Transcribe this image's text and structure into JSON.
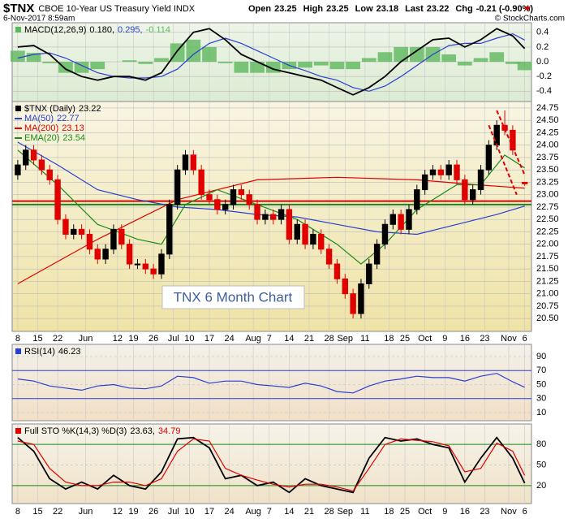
{
  "header": {
    "symbol": "$TNX",
    "name": "CBOE 10-Year US Treasury Yield INDX",
    "date": "6-Nov-2017 8:59am",
    "quote": [
      {
        "label": "Open",
        "value": "23.25"
      },
      {
        "label": "High",
        "value": "23.25"
      },
      {
        "label": "Low",
        "value": "23.18"
      },
      {
        "label": "Last",
        "value": "23.22"
      },
      {
        "label": "Chg",
        "value": "-0.21 (-0.90%)"
      }
    ],
    "copyright": "© StockCharts.com"
  },
  "chart_data": [
    {
      "type": "macd",
      "xlim": [
        -1.4,
        128.7
      ],
      "ylim": [
        -0.54,
        0.53
      ],
      "yticks": [
        0.4,
        0.2,
        {
          "value": 0,
          "label": "0.0"
        },
        -0.2,
        -0.4
      ],
      "legend": {
        "name": "MACD(12,26,9)",
        "values": [
          0.18,
          0.295,
          -0.114
        ],
        "value_labels": [
          "0.180,",
          "0.295,",
          "-0.114"
        ]
      },
      "x": [
        0,
        4,
        8,
        12,
        16,
        20,
        24,
        28,
        32,
        36,
        40,
        44,
        48,
        52,
        56,
        60,
        64,
        68,
        72,
        76,
        80,
        84,
        88,
        92,
        96,
        100,
        104,
        108,
        112,
        116,
        120,
        124,
        127
      ],
      "series": [
        {
          "name": "MACD",
          "color": "#000000",
          "values": [
            0.2,
            0.22,
            0.1,
            -0.1,
            -0.2,
            -0.25,
            -0.2,
            -0.2,
            -0.25,
            -0.15,
            0.15,
            0.4,
            0.45,
            0.3,
            0.1,
            0.0,
            -0.1,
            -0.15,
            -0.2,
            -0.25,
            -0.35,
            -0.45,
            -0.35,
            -0.2,
            0.0,
            0.15,
            0.3,
            0.32,
            0.2,
            0.3,
            0.45,
            0.35,
            0.18
          ]
        },
        {
          "name": "Signal",
          "color": "#2a3fcf",
          "values": [
            0.05,
            0.1,
            0.12,
            0.05,
            -0.05,
            -0.15,
            -0.2,
            -0.22,
            -0.22,
            -0.2,
            -0.1,
            0.1,
            0.25,
            0.32,
            0.25,
            0.15,
            0.05,
            -0.05,
            -0.12,
            -0.2,
            -0.25,
            -0.35,
            -0.4,
            -0.33,
            -0.2,
            -0.05,
            0.1,
            0.22,
            0.25,
            0.25,
            0.32,
            0.38,
            0.295
          ]
        },
        {
          "name": "Histogram",
          "color": "#5cb85c",
          "values": [
            0.15,
            0.12,
            -0.02,
            -0.15,
            -0.15,
            -0.1,
            0,
            0.02,
            -0.03,
            0.05,
            0.25,
            0.3,
            0.2,
            -0.02,
            -0.15,
            -0.15,
            -0.15,
            -0.1,
            -0.08,
            -0.05,
            -0.1,
            -0.1,
            0.05,
            0.13,
            0.2,
            0.2,
            0.2,
            0.1,
            -0.05,
            0.05,
            0.13,
            -0.03,
            -0.114
          ]
        }
      ]
    },
    {
      "type": "candlestick",
      "xlim": [
        -1.4,
        128.7
      ],
      "ylim": [
        20.24,
        24.88
      ],
      "yticks": [
        24.75,
        {
          "value": 24.5,
          "label": "24.50"
        },
        24.25,
        {
          "value": 24,
          "label": "24.00"
        },
        23.75,
        {
          "value": 23.5,
          "label": "23.50"
        },
        23.25,
        {
          "value": 23,
          "label": "23.00"
        },
        22.75,
        {
          "value": 22.5,
          "label": "22.50"
        },
        22.25,
        {
          "value": 22,
          "label": "22.00"
        },
        21.75,
        {
          "value": 21.5,
          "label": "21.50"
        },
        21.25,
        {
          "value": 21,
          "label": "21.00"
        },
        20.75,
        {
          "value": 20.5,
          "label": "20.50"
        }
      ],
      "xticks": [
        {
          "value": 0,
          "label": "8"
        },
        {
          "value": 5,
          "label": "15"
        },
        {
          "value": 10,
          "label": "22"
        },
        {
          "value": 17,
          "label": "Jun"
        },
        {
          "value": 25,
          "label": "12"
        },
        {
          "value": 29,
          "label": "19"
        },
        {
          "value": 34,
          "label": "26"
        },
        {
          "value": 39,
          "label": "Jul"
        },
        {
          "value": 43,
          "label": "10"
        },
        {
          "value": 48,
          "label": "17"
        },
        {
          "value": 53,
          "label": "24"
        },
        {
          "value": 59,
          "label": "Aug"
        },
        {
          "value": 63,
          "label": "7"
        },
        {
          "value": 68,
          "label": "14"
        },
        {
          "value": 73,
          "label": "21"
        },
        {
          "value": 78,
          "label": "28"
        },
        {
          "value": 82,
          "label": "Sep"
        },
        {
          "value": 87,
          "label": "11"
        },
        {
          "value": 93,
          "label": "18"
        },
        {
          "value": 97,
          "label": "25"
        },
        {
          "value": 102,
          "label": "Oct"
        },
        {
          "value": 107,
          "label": "9"
        },
        {
          "value": 112,
          "label": "16"
        },
        {
          "value": 117,
          "label": "23"
        },
        {
          "value": 123,
          "label": "Nov"
        },
        {
          "value": 127,
          "label": "6"
        }
      ],
      "candles": {
        "name": "$TNX (Daily)",
        "last": 23.22,
        "up_color": "#000000",
        "down_color": "#e00000",
        "x": [
          0,
          2,
          4,
          6,
          8,
          10,
          12,
          14,
          16,
          18,
          20,
          22,
          24,
          26,
          28,
          30,
          32,
          34,
          36,
          38,
          40,
          42,
          44,
          46,
          48,
          50,
          52,
          54,
          56,
          58,
          60,
          62,
          64,
          66,
          68,
          70,
          72,
          74,
          76,
          78,
          80,
          82,
          84,
          86,
          88,
          90,
          92,
          94,
          96,
          98,
          100,
          102,
          104,
          106,
          108,
          110,
          112,
          114,
          116,
          118,
          120,
          122,
          124,
          127
        ],
        "open": [
          23.4,
          23.6,
          23.9,
          23.7,
          23.5,
          23.3,
          22.5,
          22.2,
          22.3,
          22.2,
          21.9,
          21.7,
          21.9,
          22.3,
          22.0,
          21.6,
          21.6,
          21.5,
          21.4,
          21.8,
          22.8,
          23.5,
          23.8,
          23.5,
          23.0,
          22.9,
          22.7,
          22.8,
          23.1,
          23.0,
          22.8,
          22.5,
          22.6,
          22.5,
          22.7,
          22.1,
          22.4,
          22.0,
          22.2,
          21.9,
          21.6,
          21.3,
          21.0,
          20.6,
          21.2,
          21.6,
          22.0,
          22.4,
          22.6,
          22.3,
          22.7,
          23.1,
          23.4,
          23.5,
          23.4,
          23.6,
          23.3,
          22.9,
          23.1,
          23.5,
          24.0,
          24.4,
          24.3,
          23.25
        ],
        "high": [
          23.7,
          24.0,
          24.0,
          23.8,
          23.6,
          23.4,
          22.6,
          22.4,
          22.4,
          22.3,
          22.0,
          22.0,
          22.4,
          22.4,
          22.1,
          21.7,
          21.7,
          21.6,
          21.9,
          22.9,
          23.6,
          23.9,
          23.9,
          23.6,
          23.1,
          23.0,
          22.9,
          23.2,
          23.2,
          23.1,
          22.9,
          22.7,
          22.7,
          22.8,
          22.8,
          22.5,
          22.5,
          22.3,
          22.3,
          22.0,
          21.7,
          21.4,
          21.1,
          21.3,
          21.7,
          22.1,
          22.5,
          22.7,
          22.7,
          22.8,
          23.2,
          23.5,
          23.6,
          23.6,
          23.7,
          23.7,
          23.4,
          23.2,
          23.6,
          24.1,
          24.5,
          24.7,
          24.4,
          23.25
        ],
        "low": [
          23.3,
          23.5,
          23.6,
          23.4,
          23.2,
          22.4,
          22.1,
          22.1,
          22.1,
          21.8,
          21.6,
          21.6,
          21.8,
          21.9,
          21.5,
          21.5,
          21.4,
          21.3,
          21.3,
          21.7,
          22.7,
          23.4,
          23.4,
          22.9,
          22.8,
          22.6,
          22.6,
          22.7,
          22.9,
          22.7,
          22.4,
          22.4,
          22.4,
          22.4,
          22.0,
          22.0,
          21.9,
          21.9,
          21.8,
          21.5,
          21.2,
          20.9,
          20.5,
          20.5,
          21.1,
          21.5,
          21.9,
          22.3,
          22.2,
          22.2,
          22.6,
          23.0,
          23.3,
          23.3,
          23.3,
          23.2,
          22.8,
          22.8,
          23.0,
          23.4,
          23.9,
          24.2,
          23.8,
          23.18
        ],
        "close": [
          23.6,
          23.9,
          23.7,
          23.5,
          23.3,
          22.5,
          22.2,
          22.3,
          22.2,
          21.9,
          21.7,
          21.9,
          22.3,
          22.0,
          21.6,
          21.6,
          21.5,
          21.4,
          21.8,
          22.8,
          23.5,
          23.8,
          23.5,
          23.0,
          22.9,
          22.7,
          22.8,
          23.1,
          23.0,
          22.8,
          22.5,
          22.6,
          22.5,
          22.7,
          22.1,
          22.4,
          22.0,
          22.2,
          21.9,
          21.6,
          21.3,
          21.0,
          20.6,
          21.2,
          21.6,
          22.0,
          22.4,
          22.6,
          22.3,
          22.7,
          23.1,
          23.4,
          23.5,
          23.4,
          23.6,
          23.3,
          22.9,
          23.1,
          23.5,
          24.0,
          24.4,
          24.3,
          23.9,
          23.22
        ]
      },
      "series": [
        {
          "name": "MA(50)",
          "last": 22.77,
          "color": "#2a3fcf",
          "x": [
            0,
            10,
            20,
            30,
            40,
            50,
            60,
            70,
            80,
            90,
            100,
            110,
            120,
            127
          ],
          "values": [
            24.06,
            23.6,
            23.1,
            22.9,
            22.75,
            22.7,
            22.6,
            22.55,
            22.4,
            22.25,
            22.2,
            22.4,
            22.6,
            22.77
          ]
        },
        {
          "name": "MA(200)",
          "last": 23.13,
          "color": "#e00000",
          "x": [
            0,
            20,
            40,
            60,
            80,
            100,
            115,
            127
          ],
          "values": [
            21.2,
            22.1,
            22.9,
            23.3,
            23.35,
            23.3,
            23.2,
            23.13
          ]
        },
        {
          "name": "EMA(20)",
          "last": 23.54,
          "color": "#1a8a1a",
          "x": [
            0,
            10,
            20,
            30,
            36,
            42,
            50,
            60,
            70,
            80,
            86,
            92,
            100,
            110,
            116,
            122,
            127
          ],
          "values": [
            23.9,
            23.2,
            22.4,
            22.1,
            22.0,
            22.8,
            23.1,
            22.8,
            22.5,
            22.0,
            21.6,
            22.0,
            22.7,
            23.2,
            23.2,
            23.8,
            23.54
          ]
        }
      ],
      "hlines": [
        {
          "value": 22.87,
          "color": "#e00000"
        },
        {
          "value": 22.8,
          "color": "#1a8a1a"
        }
      ],
      "trendlines": [
        {
          "x": [
            120,
            127
          ],
          "values": [
            24.7,
            23.4
          ],
          "color": "#e00000"
        },
        {
          "x": [
            118,
            125
          ],
          "values": [
            24.4,
            23.0
          ],
          "color": "#e00000"
        }
      ],
      "annotation": "TNX 6 Month Chart"
    },
    {
      "type": "line",
      "xlim": [
        -1.4,
        128.7
      ],
      "ylim": [
        -1.6,
        107.4
      ],
      "yticks": [
        90,
        70,
        50,
        30,
        10
      ],
      "grid": true,
      "legend": {
        "name": "RSI(14)",
        "values": [
          46.23
        ]
      },
      "hlines": [
        {
          "value": 70,
          "color": "#2a3fcf"
        },
        {
          "value": 30,
          "color": "#2a3fcf"
        }
      ],
      "x": [
        0,
        4,
        8,
        12,
        16,
        20,
        24,
        28,
        32,
        36,
        40,
        44,
        48,
        52,
        56,
        60,
        64,
        68,
        72,
        76,
        80,
        84,
        88,
        92,
        96,
        100,
        104,
        108,
        112,
        116,
        120,
        124,
        127
      ],
      "series": [
        {
          "name": "RSI",
          "color": "#2a3fcf",
          "values": [
            58,
            55,
            48,
            45,
            42,
            48,
            50,
            45,
            44,
            48,
            62,
            60,
            52,
            55,
            55,
            50,
            48,
            46,
            52,
            48,
            40,
            38,
            48,
            55,
            58,
            62,
            60,
            60,
            55,
            62,
            66,
            54,
            46.23
          ]
        }
      ]
    },
    {
      "type": "line",
      "xlim": [
        -1.4,
        128.7
      ],
      "ylim": [
        -6.2,
        109.8
      ],
      "yticks": [
        80,
        50,
        20
      ],
      "grid": true,
      "legend": {
        "name": "Full STO %K(14,3) %D(3)",
        "values": [
          23.63,
          34.79
        ],
        "value_labels": [
          "23.63,",
          "34.79"
        ]
      },
      "hlines": [
        {
          "value": 80,
          "color": "#1a8a1a"
        },
        {
          "value": 20,
          "color": "#1a8a1a"
        }
      ],
      "x": [
        0,
        4,
        8,
        12,
        16,
        20,
        24,
        28,
        32,
        36,
        40,
        44,
        48,
        52,
        56,
        60,
        64,
        68,
        72,
        76,
        80,
        84,
        88,
        92,
        96,
        100,
        104,
        108,
        112,
        116,
        120,
        124,
        127
      ],
      "series": [
        {
          "name": "%K",
          "color": "#000000",
          "values": [
            90,
            70,
            30,
            15,
            25,
            15,
            35,
            20,
            15,
            40,
            88,
            90,
            75,
            30,
            35,
            20,
            25,
            10,
            30,
            20,
            15,
            10,
            60,
            90,
            85,
            88,
            80,
            75,
            25,
            60,
            90,
            60,
            23.63
          ]
        },
        {
          "name": "%D",
          "color": "#e00000",
          "values": [
            85,
            80,
            45,
            25,
            20,
            20,
            25,
            25,
            20,
            30,
            70,
            88,
            85,
            45,
            35,
            28,
            22,
            18,
            22,
            22,
            18,
            12,
            45,
            80,
            88,
            86,
            84,
            78,
            40,
            45,
            82,
            70,
            34.79
          ]
        }
      ]
    }
  ]
}
